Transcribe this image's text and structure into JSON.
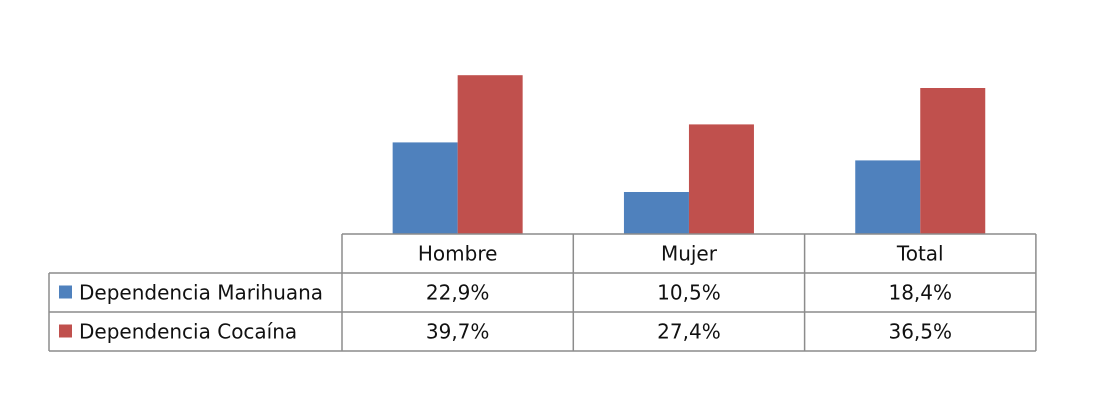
{
  "chart_data": {
    "type": "bar",
    "categories": [
      "Hombre",
      "Mujer",
      "Total"
    ],
    "series": [
      {
        "name": "Dependencia Marihuana",
        "values": [
          22.9,
          10.5,
          18.4
        ],
        "labels": [
          "22,9%",
          "10,5%",
          "18,4%"
        ],
        "color": "#4F81BD"
      },
      {
        "name": "Dependencia Cocaína",
        "values": [
          39.7,
          27.4,
          36.5
        ],
        "labels": [
          "39,7%",
          "27,4%",
          "36,5%"
        ],
        "color": "#C0504D"
      }
    ],
    "ylim": [
      0,
      40
    ],
    "legend": "data-table",
    "grid": false
  }
}
